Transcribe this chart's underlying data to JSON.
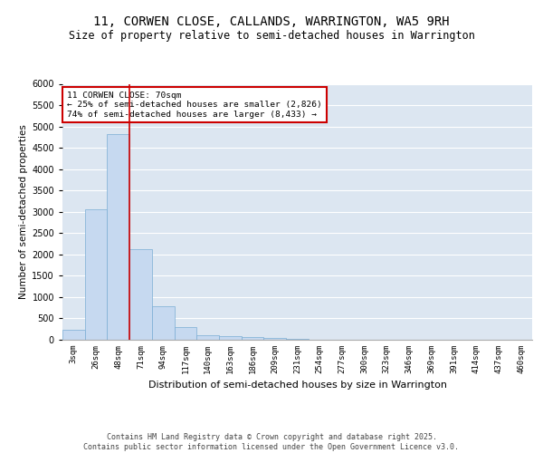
{
  "title": "11, CORWEN CLOSE, CALLANDS, WARRINGTON, WA5 9RH",
  "subtitle": "Size of property relative to semi-detached houses in Warrington",
  "xlabel": "Distribution of semi-detached houses by size in Warrington",
  "ylabel": "Number of semi-detached properties",
  "bar_color": "#c6d9f0",
  "bar_edge_color": "#7aadd4",
  "bg_color": "#dce6f1",
  "categories": [
    "3sqm",
    "26sqm",
    "48sqm",
    "71sqm",
    "94sqm",
    "117sqm",
    "140sqm",
    "163sqm",
    "186sqm",
    "209sqm",
    "231sqm",
    "254sqm",
    "277sqm",
    "300sqm",
    "323sqm",
    "346sqm",
    "369sqm",
    "391sqm",
    "414sqm",
    "437sqm",
    "460sqm"
  ],
  "values": [
    230,
    3060,
    4820,
    2130,
    795,
    305,
    110,
    75,
    55,
    40,
    30,
    0,
    0,
    0,
    0,
    0,
    0,
    0,
    0,
    0,
    0
  ],
  "ylim": [
    0,
    6000
  ],
  "yticks": [
    0,
    500,
    1000,
    1500,
    2000,
    2500,
    3000,
    3500,
    4000,
    4500,
    5000,
    5500,
    6000
  ],
  "property_line_x": 2.5,
  "pct_smaller": "25%",
  "pct_smaller_count": "2,826",
  "pct_larger": "74%",
  "pct_larger_count": "8,433",
  "annotation_box_color": "#cc0000",
  "footer": "Contains HM Land Registry data © Crown copyright and database right 2025.\nContains public sector information licensed under the Open Government Licence v3.0.",
  "grid_color": "#ffffff",
  "tick_fontsize": 6.5,
  "title_fontsize": 10,
  "subtitle_fontsize": 8.5,
  "xlabel_fontsize": 8,
  "ylabel_fontsize": 7.5,
  "footer_fontsize": 6
}
